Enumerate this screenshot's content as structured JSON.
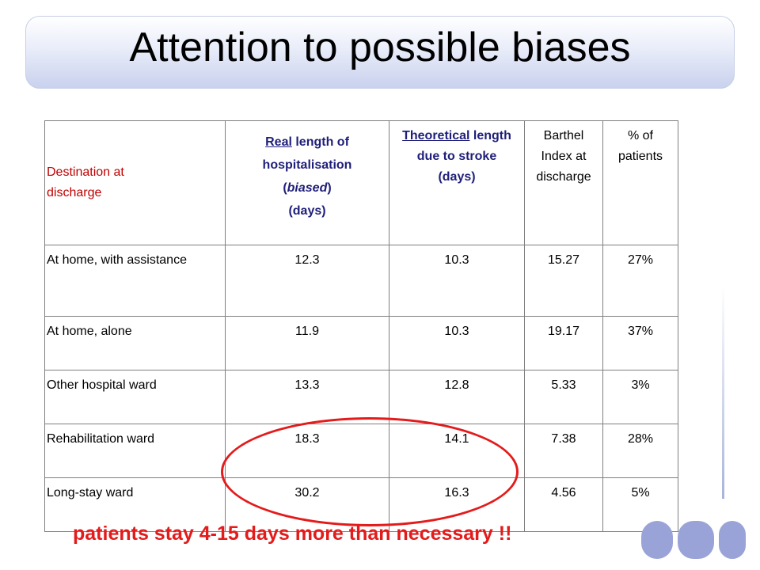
{
  "title": "Attention to possible biases",
  "table": {
    "headers": {
      "destination": [
        "Destination at",
        "discharge"
      ],
      "real_length": {
        "underline": "Real",
        "rest": " length of",
        "line2": "hospitalisation",
        "line3_open": "(",
        "line3_italic": "biased",
        "line3_close": ")",
        "line4": "(days)"
      },
      "theoretical_length": {
        "underline": "Theoretical",
        "rest": " length",
        "line2": "due to stroke",
        "line3": "(days)"
      },
      "barthel": [
        "Barthel",
        "Index at",
        "discharge"
      ],
      "percent": [
        "% of",
        "patients"
      ]
    },
    "rows": [
      {
        "destination": "At home, with assistance",
        "real": "12.3",
        "theoretical": "10.3",
        "barthel": "15.27",
        "percent": "27%"
      },
      {
        "destination": "At home, alone",
        "real": "11.9",
        "theoretical": "10.3",
        "barthel": "19.17",
        "percent": "37%"
      },
      {
        "destination": "Other hospital ward",
        "real": "13.3",
        "theoretical": "12.8",
        "barthel": "5.33",
        "percent": "3%"
      },
      {
        "destination": "Rehabilitation ward",
        "real": "18.3",
        "theoretical": "14.1",
        "barthel": "7.38",
        "percent": "28%"
      },
      {
        "destination": "Long-stay ward",
        "real": "30.2",
        "theoretical": "16.3",
        "barthel": "4.56",
        "percent": "5%"
      }
    ]
  },
  "note": "patients stay 4-15 days more than necessary !!",
  "colors": {
    "accent_red": "#e31b1b",
    "header_blue": "#1f1f7a",
    "destination_red": "#c00000",
    "logo": "#9aa3d8"
  },
  "logo_icon": "imi-logo"
}
